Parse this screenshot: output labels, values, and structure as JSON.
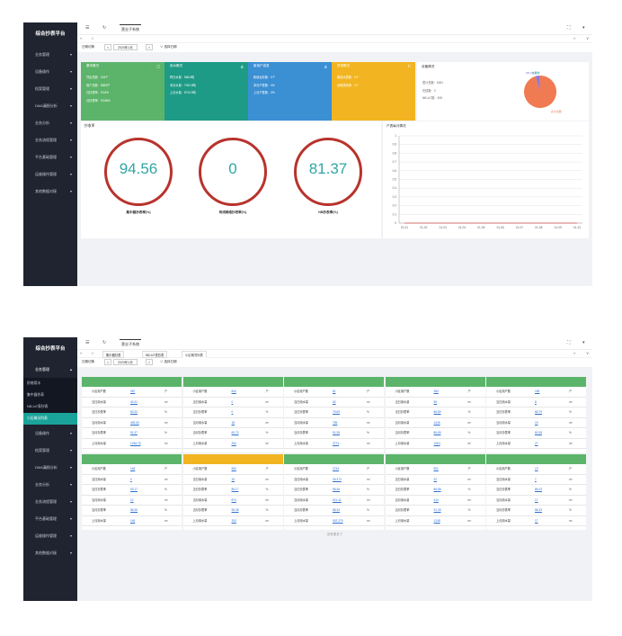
{
  "app": {
    "title": "综合抄表平台",
    "system_name": "营业子系统"
  },
  "colors": {
    "sidebar": "#1f2430",
    "accent": "#1aa39a",
    "green": "#5cb46a",
    "teal": "#1e9b86",
    "blue": "#3b8fd3",
    "orange": "#f2b521",
    "gauge_ring": "#b8332c"
  },
  "screen1": {
    "menu": [
      {
        "label": "业务管理",
        "icon": "chevron-down-icon"
      },
      {
        "label": "设备操作",
        "icon": "chevron-down-icon"
      },
      {
        "label": "档案管理",
        "icon": "chevron-down-icon"
      },
      {
        "label": "DMA漏损分析",
        "icon": "chevron-down-icon"
      },
      {
        "label": "业务分析",
        "icon": "chevron-down-icon"
      },
      {
        "label": "业务流程管理",
        "icon": "chevron-down-icon"
      },
      {
        "label": "平台基础管理",
        "icon": "chevron-down-icon"
      },
      {
        "label": "运维操作管理",
        "icon": "chevron-down-icon"
      },
      {
        "label": "其他数据对接",
        "icon": "chevron-down-icon"
      }
    ],
    "datebar": {
      "label": "日期切换",
      "prev": "<",
      "date": "2020年1月",
      "next": ">",
      "extra": "∨ 选择日期"
    },
    "cards": [
      {
        "title": "基本概况",
        "lines": [
          "开区总数：318个",
          "用户总数：8683户",
          "日抄表率：93.8%",
          "月抄表率：93.88%"
        ]
      },
      {
        "title": "用水概况",
        "lines": [
          "昨日水量：568.8吨",
          "本月水量：7002.8吨",
          "上月水量：8713.5吨"
        ]
      },
      {
        "title": "新用户信息",
        "lines": [
          "新增远抄数：0个",
          "本月户表数：0%",
          "上月户表数：0%"
        ]
      },
      {
        "title": "异常概况",
        "lines": [
          "离线水表数：0个",
          "远程表故障：2个"
        ]
      }
    ],
    "device": {
      "title": "设备情况",
      "lines": [
        "表计总数：6531",
        "在线数：3",
        "NB-IoT数：308"
      ],
      "pie_labels": [
        "NB-IoT表",
        "在线数",
        "表计总数"
      ],
      "pie_values": [
        308,
        3,
        6531
      ],
      "pie_colors": [
        "#8c7ad6",
        "#2fa7a5",
        "#f07a52"
      ]
    },
    "rate_title": "抄收率",
    "gauges": [
      {
        "value": "94.56",
        "label": "集中器抄表率(%)"
      },
      {
        "value": "0",
        "label": "有线网络抄表率(%)"
      },
      {
        "value": "81.37",
        "label": "NB抄表率(%)"
      }
    ],
    "line_title": "户表每月情况",
    "chart_data": {
      "type": "line",
      "x": [
        "01-01",
        "01-02",
        "01-03",
        "01-04",
        "01-05",
        "01-06",
        "01-07",
        "01-08",
        "01-09",
        "01-10"
      ],
      "series": [
        {
          "values": [
            0,
            0,
            0,
            0,
            0,
            0,
            0,
            0,
            0,
            0
          ]
        }
      ],
      "y_ticks": [
        "0",
        "0.1",
        "0.2",
        "0.3",
        "0.4",
        "0.5",
        "0.6",
        "0.7",
        "0.8",
        "0.9",
        "1"
      ],
      "ylim": [
        0,
        1
      ],
      "grid": true
    }
  },
  "screen2": {
    "menu_open": "业务管理",
    "sub_items": [
      "阶梯用水",
      "集中器抄表",
      "NB-IoT表抄表",
      "小区概况列表"
    ],
    "sub_active": 3,
    "menu_rest": [
      "设备操作",
      "档案管理",
      "DMA漏损分析",
      "业务分析",
      "业务流程管理",
      "平台基础管理",
      "运维操作管理",
      "其他数据对接"
    ],
    "tabs": [
      "集中器抄表",
      "NB-IoT表抄表",
      "小区概况列表"
    ],
    "datebar": {
      "label": "日期切换",
      "prev": "<",
      "date": "2020年1月",
      "next": ">",
      "extra": "∨ 选择日期"
    },
    "row_labels": [
      "小区用户数",
      "当日用水量",
      "当日抄表率",
      "当月用水量",
      "当月抄表率",
      "上月用水量"
    ],
    "row_units": [
      "户",
      "m³",
      "%",
      "m³",
      "%",
      "m³"
    ],
    "cards": [
      {
        "color": "green",
        "values": [
          "387",
          "40.31",
          "83.33",
          "453.53",
          "91.37",
          "1246.76"
        ]
      },
      {
        "color": "green",
        "values": [
          "844",
          "0",
          "0",
          "18",
          "60.73",
          "254"
        ]
      },
      {
        "color": "green",
        "values": [
          "81",
          "63",
          "75.65",
          "755",
          "91.38",
          "3774"
        ]
      },
      {
        "color": "green",
        "values": [
          "384",
          "59",
          "86.89",
          "1045",
          "86.89",
          "1064"
        ]
      },
      {
        "color": "green",
        "values": [
          "183",
          "8",
          "86.79",
          "19",
          "80.38",
          "27"
        ]
      },
      {
        "color": "green",
        "values": [
          "146",
          "0",
          "93.17",
          "12",
          "86.36",
          "146"
        ]
      },
      {
        "color": "orange",
        "values": [
          "560",
          "10",
          "86.17",
          "874",
          "98.38",
          "253"
        ]
      },
      {
        "color": "green",
        "values": [
          "3734",
          "26,373",
          "98.46",
          "921.41",
          "88.34",
          "902.279"
        ]
      },
      {
        "color": "green",
        "values": [
          "501",
          "22",
          "86.88",
          "414",
          "91.28",
          "1248"
        ]
      },
      {
        "color": "green",
        "values": [
          "13",
          "7",
          "86.43",
          "17",
          "86.33",
          "17"
        ]
      }
    ],
    "footer": "没有更多了"
  }
}
